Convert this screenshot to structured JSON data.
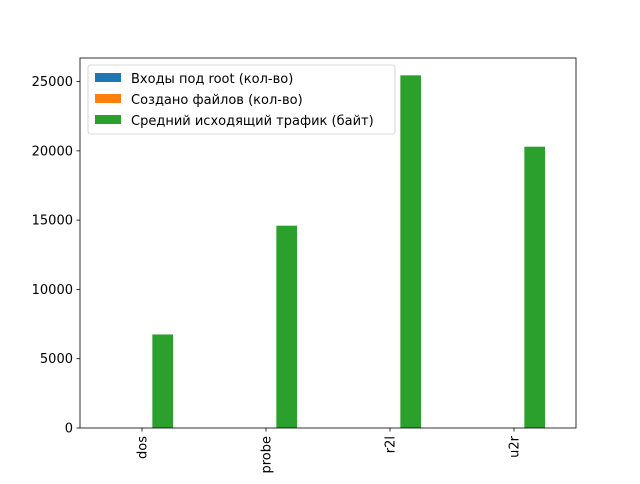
{
  "chart_data": {
    "type": "bar",
    "categories": [
      "dos",
      "probe",
      "r2l",
      "u2r"
    ],
    "series": [
      {
        "name": "Входы под root (кол-во)",
        "color": "#1f77b4",
        "values": [
          0,
          0,
          0,
          0
        ]
      },
      {
        "name": "Создано файлов (кол-во)",
        "color": "#ff7f0e",
        "values": [
          0,
          0,
          0,
          0
        ]
      },
      {
        "name": "Средний исходящий трафик (байт)",
        "color": "#2ca02c",
        "values": [
          6750,
          14600,
          25450,
          20300
        ]
      }
    ],
    "y_ticks": [
      "0",
      "5000",
      "10000",
      "15000",
      "20000",
      "25000"
    ],
    "ylim": [
      0,
      26700
    ],
    "grid": false,
    "legend_position": "upper-left"
  }
}
